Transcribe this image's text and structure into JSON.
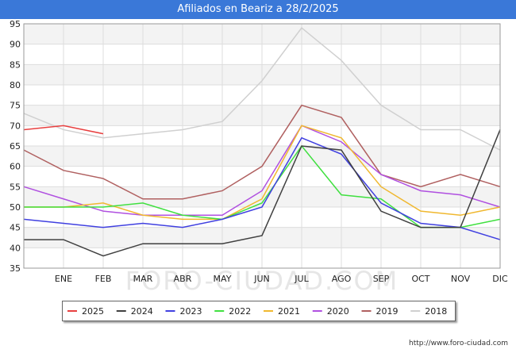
{
  "title": "Afiliados en Beariz a 28/2/2025",
  "footer_url": "http://www.foro-ciudad.com",
  "watermark": "FORO-CIUDAD.COM",
  "chart_data": {
    "type": "line",
    "title": "Afiliados en Beariz a 28/2/2025",
    "categories": [
      "",
      "ENE",
      "FEB",
      "MAR",
      "ABR",
      "MAY",
      "JUN",
      "JUL",
      "AGO",
      "SEP",
      "OCT",
      "NOV",
      "DIC"
    ],
    "y_ticks": [
      35,
      40,
      45,
      50,
      55,
      60,
      65,
      70,
      75,
      80,
      85,
      90,
      95
    ],
    "ylim": [
      35,
      95
    ],
    "grid": true,
    "legend_position": "bottom",
    "series": [
      {
        "name": "2025",
        "color": "#e84040",
        "values": [
          69,
          70,
          68,
          null,
          null,
          null,
          null,
          null,
          null,
          null,
          null,
          null,
          null
        ]
      },
      {
        "name": "2024",
        "color": "#404040",
        "values": [
          42,
          42,
          38,
          41,
          41,
          41,
          43,
          65,
          64,
          49,
          45,
          45,
          69
        ]
      },
      {
        "name": "2023",
        "color": "#4040e0",
        "values": [
          47,
          46,
          45,
          46,
          45,
          47,
          50,
          67,
          63,
          51,
          46,
          45,
          42
        ]
      },
      {
        "name": "2022",
        "color": "#40e040",
        "values": [
          50,
          50,
          50,
          51,
          48,
          47,
          51,
          65,
          53,
          52,
          45,
          45,
          47
        ]
      },
      {
        "name": "2021",
        "color": "#f0b830",
        "values": [
          50,
          50,
          51,
          48,
          47,
          47,
          52,
          70,
          67,
          55,
          49,
          48,
          50
        ]
      },
      {
        "name": "2020",
        "color": "#b050e0",
        "values": [
          55,
          52,
          49,
          48,
          48,
          48,
          54,
          70,
          66,
          58,
          54,
          53,
          50
        ]
      },
      {
        "name": "2019",
        "color": "#b06060",
        "values": [
          64,
          59,
          57,
          52,
          52,
          54,
          60,
          75,
          72,
          58,
          55,
          58,
          55
        ]
      },
      {
        "name": "2018",
        "color": "#d0d0d0",
        "values": [
          73,
          69,
          67,
          68,
          69,
          71,
          81,
          94,
          86,
          75,
          69,
          69,
          64
        ]
      }
    ]
  }
}
